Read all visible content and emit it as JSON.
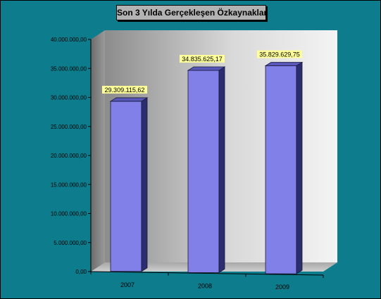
{
  "title": "Son 3 Yılda Gerçekleşen Özkaynaklar",
  "colors": {
    "background": "#0d7c8c",
    "bar_front": "#8080e8",
    "bar_side": "#2c2c70",
    "bar_top": "#5858b8",
    "label_bg": "#ffff99"
  },
  "chart_data": {
    "type": "bar",
    "categories": [
      "2007",
      "2008",
      "2009"
    ],
    "values": [
      29309115.62,
      34835625.17,
      35829629.75
    ],
    "data_labels": [
      "29.309.115,62",
      "34.835.625,17",
      "35.829.629,75"
    ],
    "ylim": [
      0,
      40000000
    ],
    "yticks": [
      0,
      5000000,
      10000000,
      15000000,
      20000000,
      25000000,
      30000000,
      35000000,
      40000000
    ],
    "ytick_labels": [
      "0,00",
      "5.000.000,00",
      "10.000.000,00",
      "15.000.000,00",
      "20.000.000,00",
      "25.000.000,00",
      "30.000.000,00",
      "35.000.000,00",
      "40.000.000,00"
    ],
    "grid": false,
    "legend": false,
    "style": "3d"
  }
}
